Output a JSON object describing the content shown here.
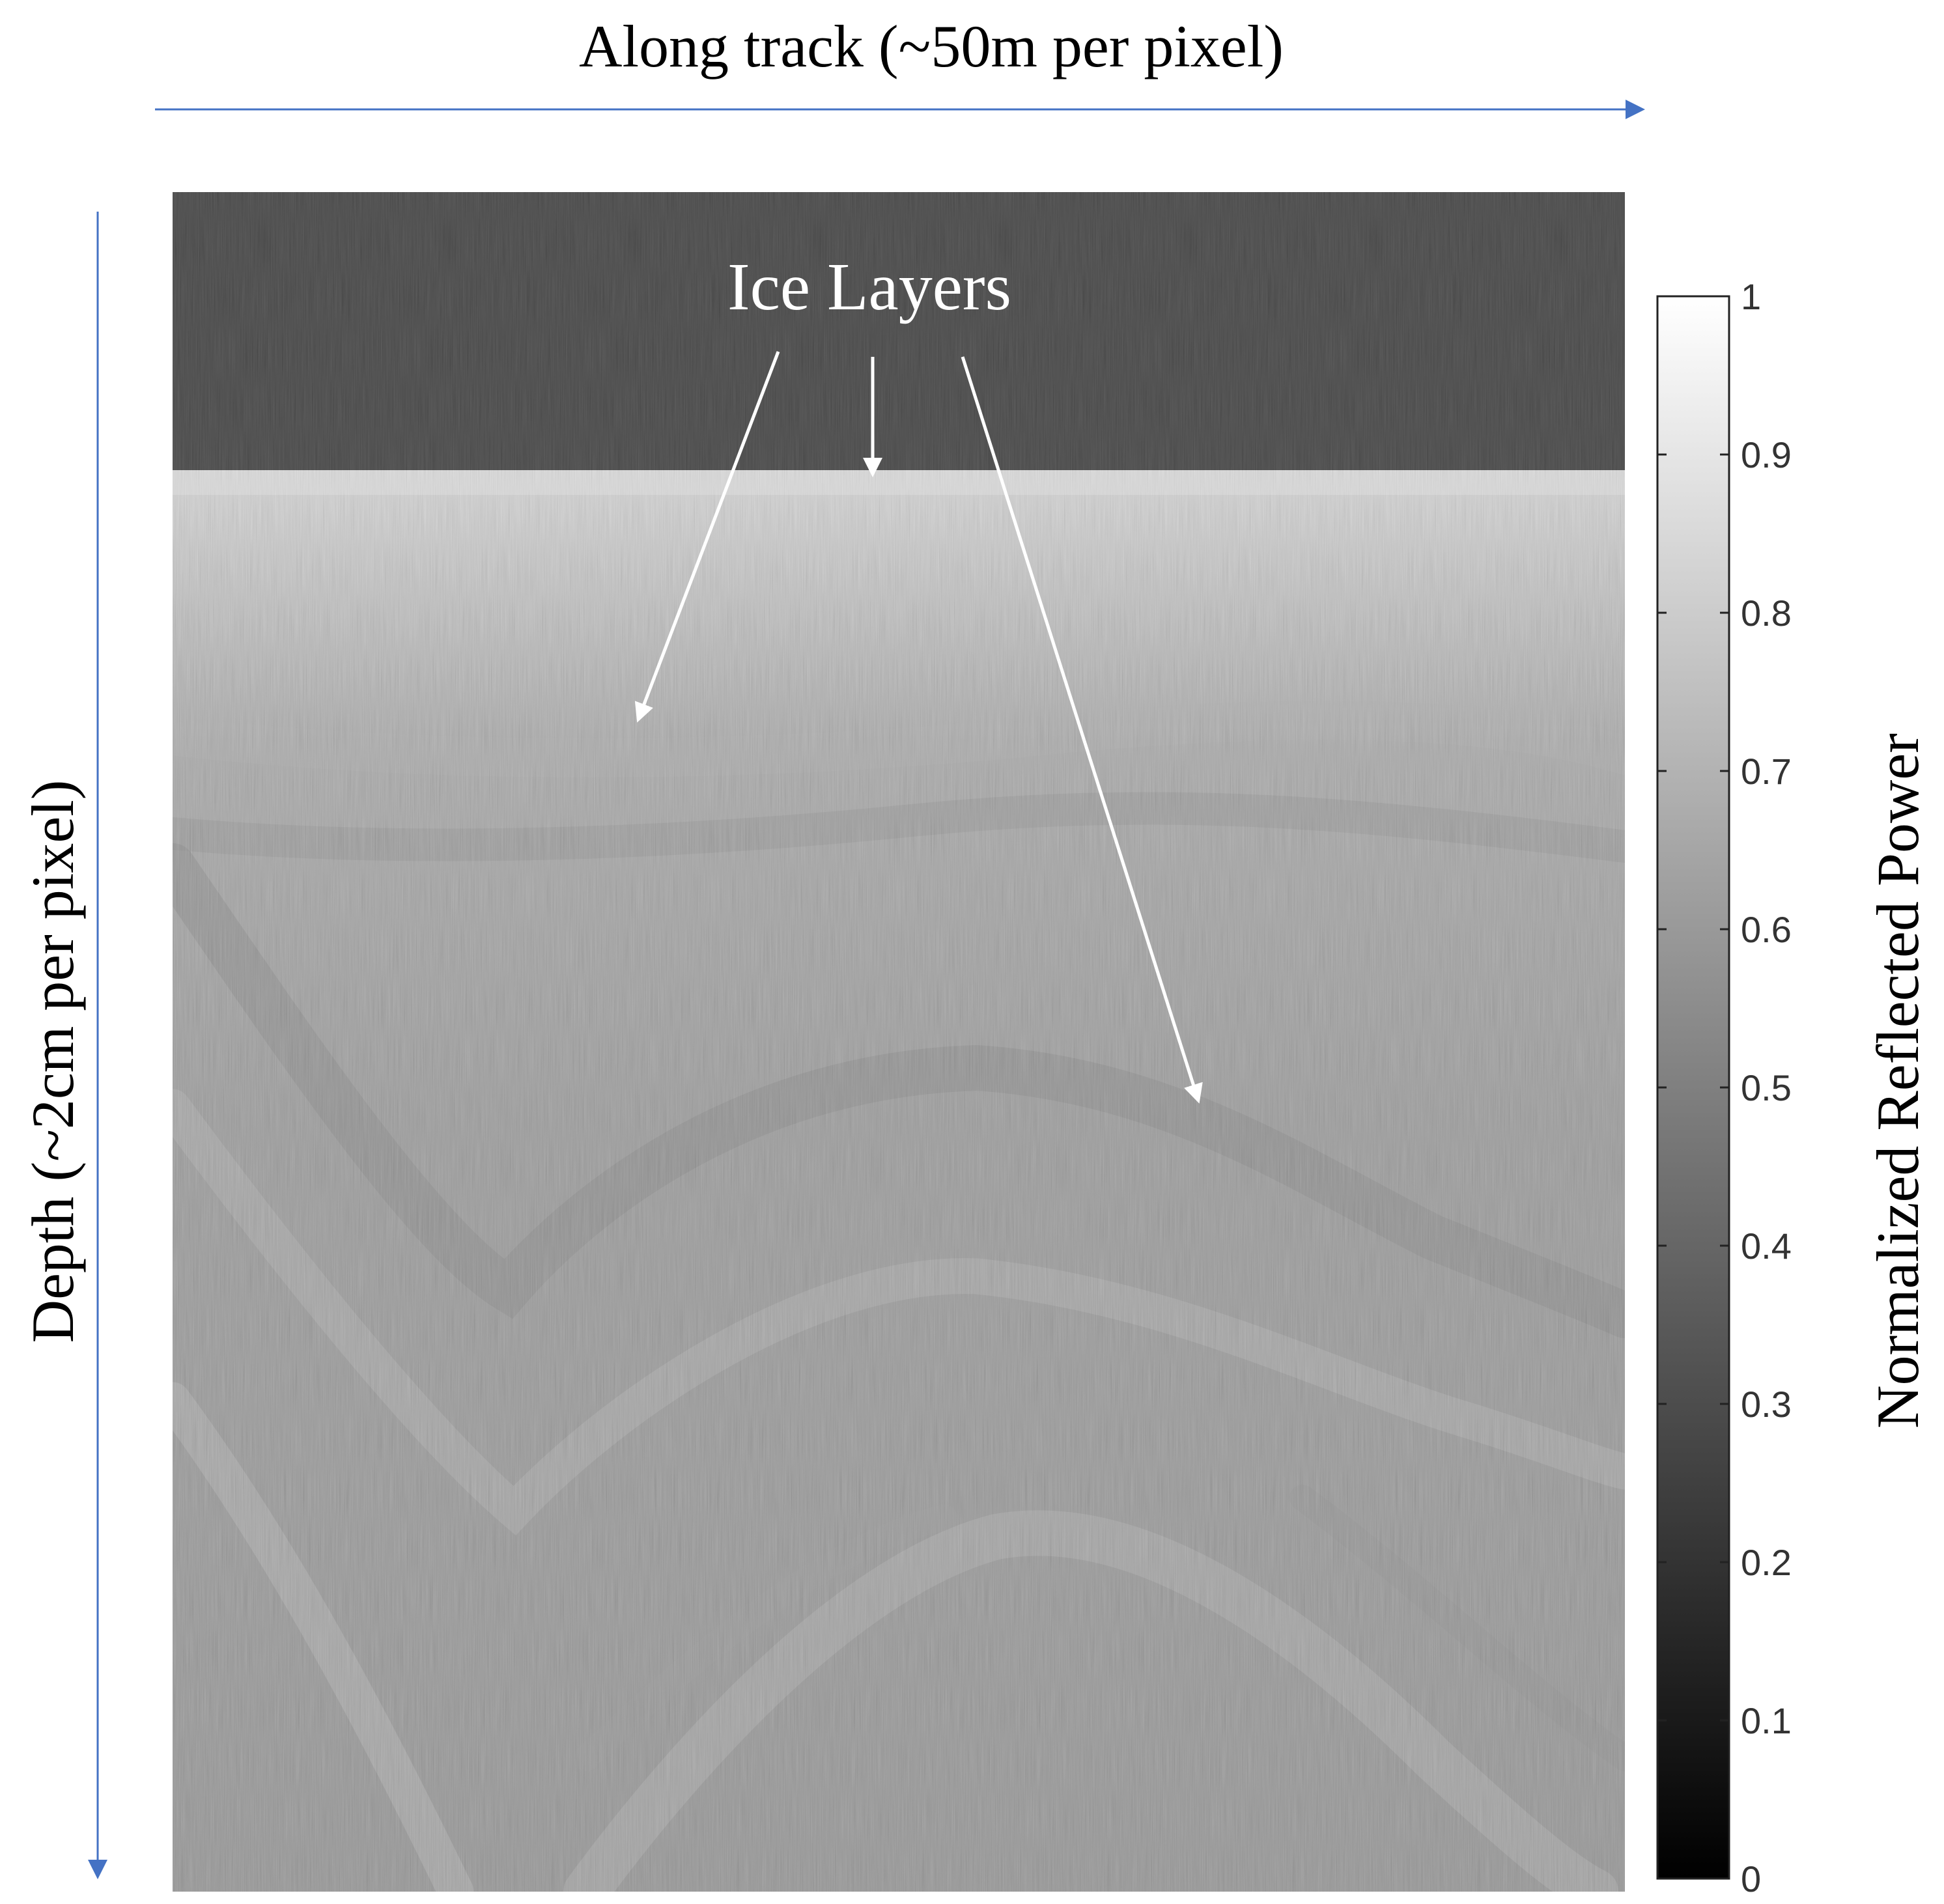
{
  "chart_data": {
    "type": "heatmap",
    "title": "",
    "xlabel": "Along track (~50m per pixel)",
    "ylabel": "Depth (~2cm per pixel)",
    "colorbar": {
      "label": "Normalized Reflected Power",
      "range": [
        0,
        1
      ],
      "ticks": [
        0,
        0.1,
        0.2,
        0.3,
        0.4,
        0.5,
        0.6,
        0.7,
        0.8,
        0.9,
        1
      ],
      "tick_labels": [
        "0",
        "0.1",
        "0.2",
        "0.3",
        "0.4",
        "0.5",
        "0.6",
        "0.7",
        "0.8",
        "0.9",
        "1"
      ],
      "colormap": "gray"
    },
    "annotation": {
      "text": "Ice Layers",
      "arrow_count": 3
    },
    "axis_arrow_color": "#4472c4",
    "annotation_color": "#ffffff"
  }
}
